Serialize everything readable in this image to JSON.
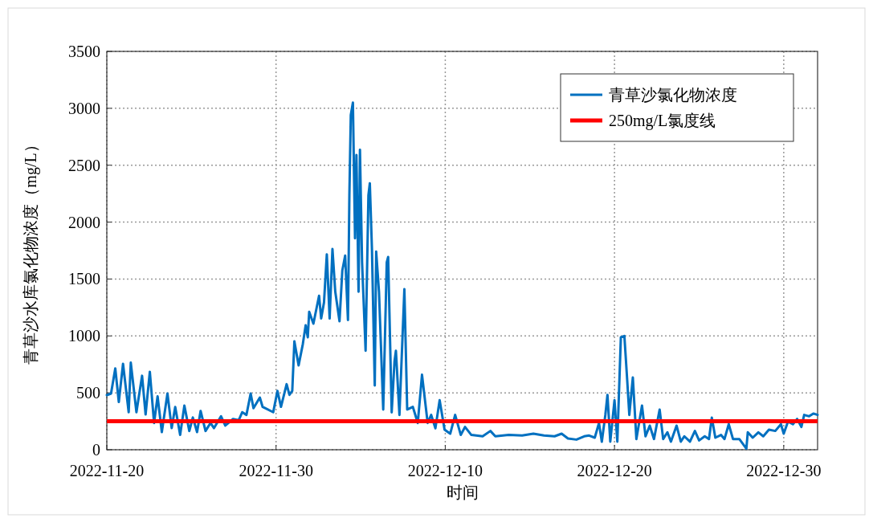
{
  "chart_data": {
    "type": "line",
    "xlabel": "时间",
    "ylabel": "青草沙水库氯化物浓度（mg/L）",
    "xlim": [
      "2022-11-20",
      "2023-01-01"
    ],
    "xticks": [
      "2022-11-20",
      "2022-11-30",
      "2022-12-10",
      "2022-12-20",
      "2022-12-30"
    ],
    "ylim": [
      0,
      3500
    ],
    "yticks": [
      0,
      500,
      1000,
      1500,
      2000,
      2500,
      3000,
      3500
    ],
    "grid": true,
    "legend": "top right",
    "line_style": "solid",
    "ref_lines": [
      {
        "axis": "y",
        "value": 250,
        "label": "250mg/L氯度线",
        "color": "#ff0000"
      }
    ],
    "x": [
      "2022-11-20T00:00",
      "2022-11-20T06:00",
      "2022-11-20T12:00",
      "2022-11-20T17:00",
      "2022-11-20T23:00",
      "2022-11-21T07:00",
      "2022-11-21T10:00",
      "2022-11-21T18:00",
      "2022-11-22T02:00",
      "2022-11-22T07:00",
      "2022-11-22T13:00",
      "2022-11-22T19:00",
      "2022-11-23T00:00",
      "2022-11-23T06:00",
      "2022-11-23T14:00",
      "2022-11-23T20:00",
      "2022-11-24T01:00",
      "2022-11-24T08:00",
      "2022-11-24T14:00",
      "2022-11-24T21:00",
      "2022-11-25T02:00",
      "2022-11-25T08:00",
      "2022-11-25T13:00",
      "2022-11-25T20:00",
      "2022-11-26T03:00",
      "2022-11-26T08:00",
      "2022-11-26T18:00",
      "2022-11-27T00:00",
      "2022-11-27T11:00",
      "2022-11-27T19:00",
      "2022-11-28T00:00",
      "2022-11-28T06:00",
      "2022-11-28T12:00",
      "2022-11-28T16:00",
      "2022-11-29T01:00",
      "2022-11-29T05:00",
      "2022-11-29T20:00",
      "2022-11-30T02:00",
      "2022-11-30T07:00",
      "2022-11-30T15:00",
      "2022-11-30T19:00",
      "2022-11-30T23:00",
      "2022-12-01T02:00",
      "2022-12-01T08:00",
      "2022-12-01T14:00",
      "2022-12-01T18:00",
      "2022-12-01T21:00",
      "2022-12-01T23:00",
      "2022-12-02T05:00",
      "2022-12-02T13:00",
      "2022-12-02T16:00",
      "2022-12-02T20:00",
      "2022-12-03T00:00",
      "2022-12-03T04:00",
      "2022-12-03T08:00",
      "2022-12-03T12:00",
      "2022-12-03T18:00",
      "2022-12-03T22:00",
      "2022-12-04T02:00",
      "2022-12-04T06:00",
      "2022-12-04T08:00",
      "2022-12-04T10:00",
      "2022-12-04T13:00",
      "2022-12-04T16:00",
      "2022-12-04T18:00",
      "2022-12-04T21:00",
      "2022-12-04T23:00",
      "2022-12-05T02:00",
      "2022-12-05T07:00",
      "2022-12-05T11:00",
      "2022-12-05T13:00",
      "2022-12-05T16:00",
      "2022-12-05T20:00",
      "2022-12-05T22:00",
      "2022-12-06T02:00",
      "2022-12-06T08:00",
      "2022-12-06T13:00",
      "2022-12-06T15:00",
      "2022-12-06T20:00",
      "2022-12-07T00:00",
      "2022-12-07T02:00",
      "2022-12-07T07:00",
      "2022-12-07T14:00",
      "2022-12-07T18:00",
      "2022-12-08T02:00",
      "2022-12-08T09:00",
      "2022-12-08T15:00",
      "2022-12-08T23:00",
      "2022-12-09T04:00",
      "2022-12-09T10:00",
      "2022-12-09T16:00",
      "2022-12-09T23:00",
      "2022-12-10T07:00",
      "2022-12-10T14:00",
      "2022-12-10T22:00",
      "2022-12-11T04:00",
      "2022-12-11T13:00",
      "2022-12-12T05:00",
      "2022-12-12T16:00",
      "2022-12-12T23:00",
      "2022-12-13T18:00",
      "2022-12-14T13:00",
      "2022-12-15T05:00",
      "2022-12-15T20:00",
      "2022-12-16T11:00",
      "2022-12-16T21:00",
      "2022-12-17T06:00",
      "2022-12-17T18:00",
      "2022-12-18T05:00",
      "2022-12-18T12:00",
      "2022-12-18T20:00",
      "2022-12-19T02:00",
      "2022-12-19T06:00",
      "2022-12-19T11:00",
      "2022-12-19T14:00",
      "2022-12-19T18:00",
      "2022-12-20T00:00",
      "2022-12-20T04:00",
      "2022-12-20T09:00",
      "2022-12-20T14:00",
      "2022-12-20T18:00",
      "2022-12-20T21:00",
      "2022-12-21T02:00",
      "2022-12-21T07:00",
      "2022-12-21T15:00",
      "2022-12-21T20:00",
      "2022-12-22T02:00",
      "2022-12-22T08:00",
      "2022-12-22T16:00",
      "2022-12-22T21:00",
      "2022-12-23T03:00",
      "2022-12-23T08:00",
      "2022-12-23T16:00",
      "2022-12-23T22:00",
      "2022-12-24T03:00",
      "2022-12-24T11:00",
      "2022-12-24T18:00",
      "2022-12-25T00:00",
      "2022-12-25T08:00",
      "2022-12-25T14:00",
      "2022-12-25T18:00",
      "2022-12-25T23:00",
      "2022-12-26T07:00",
      "2022-12-26T12:00",
      "2022-12-26T18:00",
      "2022-12-27T00:00",
      "2022-12-27T09:00",
      "2022-12-27T19:00",
      "2022-12-27T21:00",
      "2022-12-28T04:00",
      "2022-12-28T12:00",
      "2022-12-28T19:00",
      "2022-12-29T03:00",
      "2022-12-29T12:00",
      "2022-12-29T20:00",
      "2022-12-30T00:00",
      "2022-12-30T06:00",
      "2022-12-30T13:00",
      "2022-12-30T19:00",
      "2022-12-31T01:00",
      "2022-12-31T05:00",
      "2022-12-31T12:00",
      "2022-12-31T18:00",
      "2023-01-01T00:00"
    ],
    "series": [
      {
        "name": "青草沙氯化物浓度",
        "color": "#0070c0",
        "values": [
          480,
          494,
          715,
          420,
          755,
          330,
          765,
          330,
          650,
          310,
          685,
          235,
          470,
          155,
          494,
          190,
          376,
          130,
          388,
          165,
          283,
          155,
          341,
          165,
          235,
          190,
          294,
          212,
          270,
          259,
          330,
          306,
          494,
          365,
          459,
          376,
          330,
          517,
          377,
          576,
          482,
          517,
          953,
          741,
          929,
          1094,
          988,
          1212,
          1108,
          1353,
          1153,
          1294,
          1717,
          1153,
          1764,
          1388,
          1129,
          1576,
          1706,
          1140,
          2235,
          2941,
          3050,
          1858,
          2590,
          1388,
          2635,
          1647,
          870,
          2235,
          2341,
          1764,
          565,
          1741,
          1388,
          353,
          1647,
          1694,
          329,
          776,
          870,
          306,
          1411,
          353,
          377,
          235,
          659,
          235,
          306,
          188,
          435,
          176,
          141,
          306,
          130,
          200,
          130,
          118,
          165,
          118,
          130,
          125,
          141,
          125,
          118,
          141,
          99,
          89,
          118,
          125,
          106,
          235,
          71,
          306,
          482,
          71,
          435,
          71,
          988,
          1000,
          612,
          306,
          635,
          94,
          388,
          118,
          212,
          94,
          353,
          94,
          153,
          71,
          212,
          71,
          118,
          71,
          165,
          82,
          118,
          94,
          282,
          106,
          130,
          94,
          224,
          94,
          94,
          10,
          153,
          106,
          153,
          118,
          176,
          165,
          224,
          141,
          247,
          224,
          271,
          200,
          306,
          294,
          318,
          306
        ]
      }
    ]
  }
}
